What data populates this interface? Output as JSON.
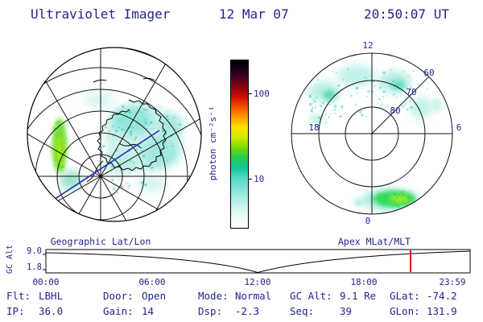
{
  "header": {
    "title": "Ultraviolet Imager",
    "date": "12 Mar 07",
    "time": "20:50:07 UT"
  },
  "geo_panel": {
    "caption": "Geographic Lat/Lon"
  },
  "apex_panel": {
    "caption": "Apex MLat/MLT",
    "mlt_top": "12",
    "mlt_left": "18",
    "mlt_right": "6",
    "mlt_bottom": "0",
    "lat_ring_labels": [
      "60",
      "70",
      "80"
    ]
  },
  "colorbar": {
    "label": "photon cm⁻²s⁻¹",
    "tick_100": "100",
    "tick_10": "10",
    "scale": "log",
    "colors_top_to_bottom": [
      "#000006",
      "#46001e",
      "#8c0010",
      "#d01000",
      "#f85000",
      "#ff9c00",
      "#ffe000",
      "#d0ec00",
      "#78dc00",
      "#20cc50",
      "#10c896",
      "#50d8c4",
      "#8ce6da",
      "#c4f2ec",
      "#ffffff"
    ]
  },
  "timeline": {
    "ylabel": "GC Alt",
    "ytick_top": "9.0",
    "ytick_bottom": "1.8",
    "xticks": [
      "00:00",
      "06:00",
      "12:00",
      "18:00",
      "23:59"
    ],
    "marker_color": "#e80000"
  },
  "status": {
    "flt_label": "Flt:",
    "flt_value": "LBHL",
    "ip_label": "IP:",
    "ip_value": "36.0",
    "door_label": "Door:",
    "door_value": "Open",
    "gain_label": "Gain:",
    "gain_value": "14",
    "mode_label": "Mode:",
    "mode_value": "Normal",
    "dsp_label": "Dsp:",
    "dsp_value": "-2.3",
    "gcalt_label": "GC Alt:",
    "gcalt_value": "9.1 Re",
    "seq_label": "Seq:",
    "seq_value": "39",
    "glat_label": "GLat:",
    "glat_value": "-74.2",
    "glon_label": "GLon:",
    "glon_value": "131.9"
  },
  "chart_data": [
    {
      "type": "heatmap",
      "title": "Geographic Lat/Lon",
      "description": "Southern-hemisphere auroral UV image over Antarctica; bright green emission streak at left limb, broad diffuse cyan emission across center-right of field of view",
      "colorbar_units": "photon cm⁻²s⁻¹",
      "scale": "log",
      "colorbar_ticks": [
        100,
        10
      ]
    },
    {
      "type": "heatmap",
      "title": "Apex MLat/MLT",
      "rings_mlat": [
        80,
        70,
        60
      ],
      "mlt_axes": [
        12,
        18,
        6,
        0
      ],
      "description": "Auroral oval in apex magnetic coordinates; diffuse cyan arc between 60-70 MLat across the dayside (top), bright green arc near 60-65 MLat around midnight (bottom)"
    },
    {
      "type": "line",
      "title": "GC Alt",
      "x": [
        "00:00",
        "06:00",
        "12:00",
        "18:00",
        "23:59"
      ],
      "y_re": [
        8.8,
        6.5,
        1.9,
        6.8,
        9.0
      ],
      "ylim": [
        1.8,
        9.0
      ],
      "current_time_marker": "20:50",
      "marker_color": "#e80000"
    }
  ]
}
